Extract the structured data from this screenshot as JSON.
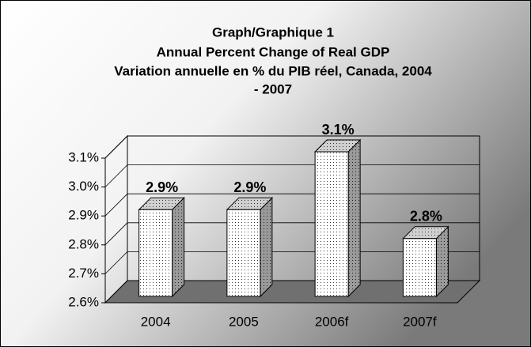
{
  "chart_data": {
    "type": "bar3d",
    "title": [
      "Graph/Graphique 1",
      "Annual Percent Change of Real GDP",
      "Variation annuelle en % du PIB réel,  Canada, 2004",
      "- 2007"
    ],
    "categories": [
      "2004",
      "2005",
      "2006f",
      "2007f"
    ],
    "values": [
      2.9,
      2.9,
      3.1,
      2.8
    ],
    "value_labels": [
      "2.9%",
      "2.9%",
      "3.1%",
      "2.8%"
    ],
    "color": "#ffffff",
    "ylim": [
      2.6,
      3.1
    ],
    "yticks": [
      {
        "value": 2.6,
        "label": "2.6%"
      },
      {
        "value": 2.7,
        "label": "2.7%"
      },
      {
        "value": 2.8,
        "label": "2.8%"
      },
      {
        "value": 2.9,
        "label": "2.9%"
      },
      {
        "value": 3.0,
        "label": "3.0%"
      },
      {
        "value": 3.1,
        "label": "3.1%"
      }
    ],
    "grid": true
  }
}
